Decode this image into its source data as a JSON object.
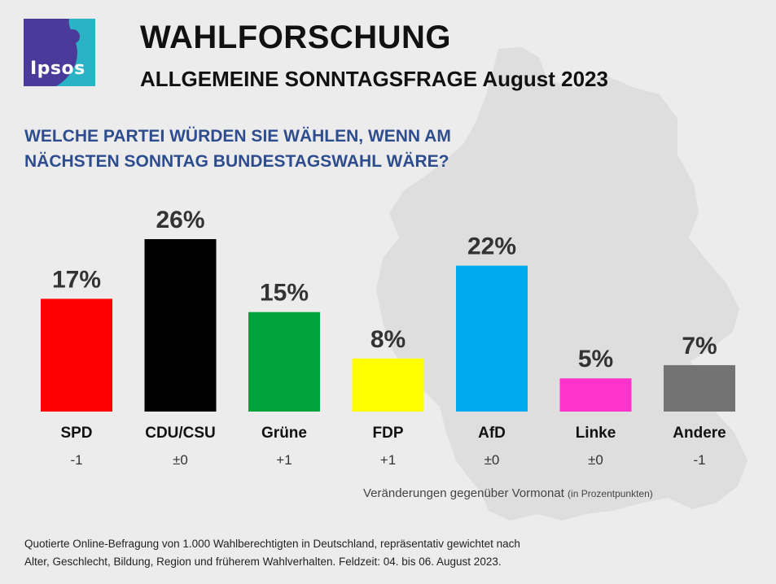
{
  "logo": {
    "text": "Ipsos",
    "background": "#4a3a9a",
    "accent": "#2ab3c4"
  },
  "header": {
    "title": "WAHLFORSCHUNG",
    "subtitle": "ALLGEMEINE SONNTAGSFRAGE August 2023"
  },
  "question": {
    "line1": "WELCHE PARTEI WÜRDEN SIE WÄHLEN, WENN AM",
    "line2": "NÄCHSTEN SONNTAG BUNDESTAGSWAHL WÄRE?"
  },
  "chart_data": {
    "type": "bar",
    "categories": [
      "SPD",
      "CDU/CSU",
      "Grüne",
      "FDP",
      "AfD",
      "Linke",
      "Andere"
    ],
    "values": [
      17,
      26,
      15,
      8,
      22,
      5,
      7
    ],
    "value_labels": [
      "17%",
      "26%",
      "15%",
      "8%",
      "22%",
      "5%",
      "7%"
    ],
    "changes": [
      "-1",
      "±0",
      "+1",
      "+1",
      "±0",
      "±0",
      "-1"
    ],
    "colors": [
      "#ff0000",
      "#000000",
      "#00a33a",
      "#ffff00",
      "#00aaee",
      "#ff33cc",
      "#737373"
    ],
    "unit": "%",
    "ylim": [
      0,
      26
    ],
    "grid": false,
    "legend": "none"
  },
  "notes": {
    "changes_label": "Veränderungen gegenüber Vormonat",
    "changes_unit": "(in Prozentpunkten)",
    "method_line1": "Quotierte Online-Befragung  von 1.000 Wahlberechtigten  in Deutschland, repräsentativ gewichtet nach",
    "method_line2": "Alter, Geschlecht, Bildung, Region und früherem Wahlverhalten.  Feldzeit: 04. bis 06. August 2023."
  }
}
